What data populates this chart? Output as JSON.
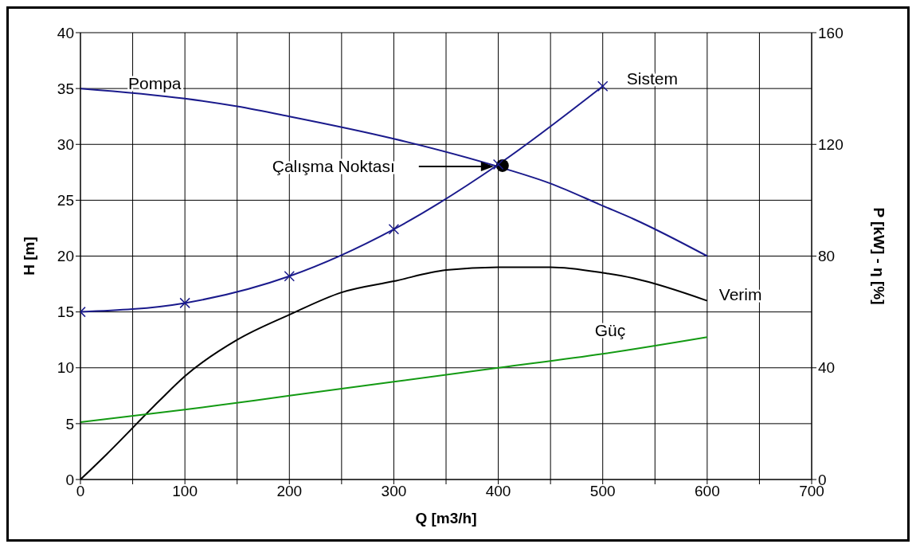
{
  "chart_data": {
    "type": "line",
    "xlabel": "Q [m3/h]",
    "ylabel": "H [m]",
    "y2label": "P [kW] - η [%]",
    "xlim": [
      0,
      700
    ],
    "xticks": [
      0,
      {
        "value": 50,
        "label": null
      },
      100,
      {
        "value": 150,
        "label": null
      },
      200,
      {
        "value": 250,
        "label": null
      },
      300,
      {
        "value": 350,
        "label": null
      },
      400,
      {
        "value": 450,
        "label": null
      },
      500,
      {
        "value": 550,
        "label": null
      },
      600,
      {
        "value": 650,
        "label": null
      },
      700
    ],
    "ylim": [
      0,
      40
    ],
    "yticks": [
      0,
      5,
      10,
      15,
      20,
      25,
      30,
      35,
      40
    ],
    "y2lim": [
      0,
      160
    ],
    "y2ticks": [
      0,
      40,
      80,
      120,
      160
    ],
    "grid": true,
    "marker": "none",
    "line_style": "solid",
    "series": [
      {
        "name": "Pompa",
        "color": "#1a1a8c",
        "x": [
          0,
          100,
          150,
          200,
          300,
          400,
          450,
          500,
          530,
          600
        ],
        "values": [
          35,
          34.1,
          33.4,
          32.5,
          30.5,
          28,
          26.5,
          24.5,
          23.3,
          20
        ]
      },
      {
        "name": "Sistem",
        "color": "#1a1a8c",
        "marker": "cross",
        "x": [
          0,
          100,
          200,
          300,
          400,
          500
        ],
        "values": [
          15,
          15.8,
          18.2,
          22.4,
          28.2,
          35.2
        ]
      },
      {
        "name": "Verim",
        "color": "#000000",
        "axis": "y2",
        "x": [
          0,
          25,
          75,
          100,
          150,
          200,
          250,
          300,
          350,
          400,
          450,
          500,
          530,
          600
        ],
        "values": [
          0,
          9,
          28,
          37,
          50,
          59,
          67,
          71,
          75,
          76,
          76,
          74,
          72,
          64
        ]
      },
      {
        "name": "Güç",
        "color": "#139a13",
        "axis": "y2",
        "x": [
          0,
          100,
          200,
          300,
          400,
          500,
          600
        ],
        "values": [
          20.5,
          25,
          30,
          35,
          40,
          45,
          51
        ]
      },
      {
        "type": "scatter",
        "marker": "circle",
        "color": "#000000",
        "x": [
          404
        ],
        "values": [
          28.1
        ]
      }
    ],
    "annotations": [
      "Çalışma Noktası"
    ]
  }
}
